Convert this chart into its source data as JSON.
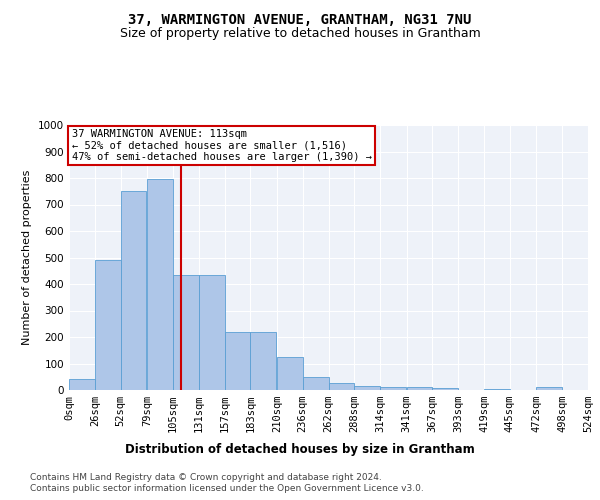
{
  "title1": "37, WARMINGTON AVENUE, GRANTHAM, NG31 7NU",
  "title2": "Size of property relative to detached houses in Grantham",
  "xlabel": "Distribution of detached houses by size in Grantham",
  "ylabel": "Number of detached properties",
  "footer1": "Contains HM Land Registry data © Crown copyright and database right 2024.",
  "footer2": "Contains public sector information licensed under the Open Government Licence v3.0.",
  "annotation_line1": "37 WARMINGTON AVENUE: 113sqm",
  "annotation_line2": "← 52% of detached houses are smaller (1,516)",
  "annotation_line3": "47% of semi-detached houses are larger (1,390) →",
  "bar_values": [
    40,
    490,
    750,
    795,
    435,
    435,
    220,
    220,
    125,
    50,
    28,
    14,
    10,
    10,
    8,
    0,
    5,
    0,
    10
  ],
  "bar_left_edges": [
    0,
    26,
    52,
    79,
    105,
    131,
    157,
    183,
    210,
    236,
    262,
    288,
    314,
    341,
    367,
    393,
    419,
    445,
    472
  ],
  "bin_width": 26,
  "x_tick_labels": [
    "0sqm",
    "26sqm",
    "52sqm",
    "79sqm",
    "105sqm",
    "131sqm",
    "157sqm",
    "183sqm",
    "210sqm",
    "236sqm",
    "262sqm",
    "288sqm",
    "314sqm",
    "341sqm",
    "367sqm",
    "393sqm",
    "419sqm",
    "445sqm",
    "472sqm",
    "498sqm",
    "524sqm"
  ],
  "x_ticks": [
    0,
    26,
    52,
    79,
    105,
    131,
    157,
    183,
    210,
    236,
    262,
    288,
    314,
    341,
    367,
    393,
    419,
    445,
    472,
    498,
    524
  ],
  "ylim": [
    0,
    1000
  ],
  "y_ticks": [
    0,
    100,
    200,
    300,
    400,
    500,
    600,
    700,
    800,
    900,
    1000
  ],
  "bar_color": "#aec6e8",
  "bar_edge_color": "#5a9fd4",
  "vline_x": 113,
  "vline_color": "#cc0000",
  "annotation_box_color": "#cc0000",
  "bg_color": "#eef2f9",
  "grid_color": "#ffffff",
  "title1_fontsize": 10,
  "title2_fontsize": 9,
  "xlabel_fontsize": 8.5,
  "ylabel_fontsize": 8,
  "tick_fontsize": 7.5,
  "annotation_fontsize": 7.5,
  "footer_fontsize": 6.5
}
